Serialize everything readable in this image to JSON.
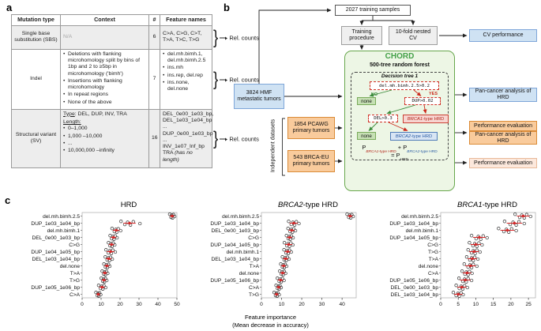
{
  "panel_a": {
    "label": "a",
    "brace": "}",
    "rel_counts_label": "Rel. counts",
    "table": {
      "headers": [
        "Mutation type",
        "Context",
        "#",
        "Feature names"
      ],
      "rows": [
        {
          "mutation_type": "Single base substitution (SBS)",
          "context": "N/A",
          "count": "6",
          "features": "C>A, C>G, C>T, T>A, T>C, T>G"
        },
        {
          "mutation_type": "Indel",
          "count": "7",
          "context_bullets": [
            "Deletions with flanking microhomology split by bins of 1bp and 2 to ≥5bp in microhomology ('bimh')",
            "Insertions with flanking microhomology",
            "In repeat regions",
            "None of the above"
          ],
          "feature_bullets": [
            "del.mh.bimh.1, del.mh.bimh.2.5",
            "ins.mh",
            "ins.rep, del.rep",
            "ins.none, del.none"
          ]
        },
        {
          "mutation_type": "Structural variant (SV)",
          "count": "16",
          "type_label": "Type",
          "type_rest": ": DEL, DUP, INV, TRA",
          "length_label": "Length:",
          "length_bullets": [
            "0–1,000",
            "1,000 –10,000",
            "...",
            "10,000,000 –infinity"
          ],
          "feature_lines": [
            "DEL_0e00_1e03_bp,",
            "DEL_1e03_1e04_bp",
            "...",
            "DUP_0e00_1e03_bp",
            "...",
            "INV_1e07_Inf_bp"
          ],
          "tra_label": "TRA ",
          "tra_note": "(has no length)"
        }
      ]
    }
  },
  "panel_b": {
    "label": "b",
    "training_samples": "2027 training samples",
    "training_procedure": "Training procedure",
    "nested_cv": "10-fold nested CV",
    "cv_performance": "CV performance",
    "hmf": "3824 HMF metastatic tumors",
    "chord_title": "CHORD",
    "chord_subtitle": "500-tree random forest",
    "tree_title": "Decision tree 1",
    "node1": "del.mh.bimh.2.5>0.2",
    "no": "NO",
    "yes": "YES",
    "none1": "none",
    "none2": "none",
    "node2": "DUP>0.02",
    "node3": "DEL>0.3",
    "brca1_italic": "BRCA1",
    "brca1_rest": "-type HRD",
    "brca2_italic": "BRCA2",
    "brca2_rest": "-type HRD",
    "formula": {
      "p1": "P",
      "sub1_italic": "BRCA1",
      "sub1_rest": "-type HRD",
      "plus": " + P",
      "sub2_italic": "BRCA2",
      "sub2_rest": "-type HRD",
      "eq": "= P",
      "sub3": "HRD"
    },
    "independent_label": "Independent datasets",
    "pcawg": "1854 PCAWG primary tumors",
    "brca_eu": "543 BRCA-EU primary tumors",
    "pan_cancer_blue": "Pan-cancer analysis of HRD",
    "perf_eval_1": "Performance evaluation",
    "pan_cancer_orange": "Pan-cancer analysis of HRD",
    "perf_eval_2": "Performance evaluation"
  },
  "panel_c": {
    "label": "c",
    "titles": [
      {
        "italic": "",
        "rest": "HRD"
      },
      {
        "italic": "BRCA2",
        "rest": "-type HRD"
      },
      {
        "italic": "BRCA1",
        "rest": "-type HRD"
      }
    ],
    "xlabel_line1": "Feature importance",
    "xlabel_line2": "(Mean decrease in accuracy)"
  },
  "colors": {
    "mean_red": "#d62728",
    "point_stroke": "#333333",
    "chord_green": "#43a047",
    "blue_box": "#cfe2f3",
    "orange_box": "#f9cb9c",
    "none_green": "#c6e0b4",
    "brca1_red": "#b3271c",
    "brca2_blue": "#2b5da4"
  },
  "chart_data": [
    {
      "type": "scatter",
      "name": "hrd",
      "title": "HRD",
      "xlabel": "Feature importance (Mean decrease in accuracy)",
      "xlim": [
        0,
        50
      ],
      "xticks": [
        0,
        10,
        20,
        30,
        40,
        50
      ],
      "rows": [
        {
          "label": "del.mh.bimh.2.5",
          "mean": 47.5,
          "sd": 1.2,
          "points": [
            46.2,
            46.9,
            47.3,
            47.7,
            48.2,
            48.8
          ]
        },
        {
          "label": "DUP_1e03_1e04_bp",
          "mean": 25,
          "sd": 3.2,
          "points": [
            20.5,
            22.5,
            24,
            25.5,
            27,
            30.5
          ]
        },
        {
          "label": "del.mh.bimh.1",
          "mean": 18,
          "sd": 1.8,
          "points": [
            15.8,
            17,
            17.7,
            18.3,
            19.1,
            20.3
          ]
        },
        {
          "label": "DEL_0e00_1e03_bp",
          "mean": 16.5,
          "sd": 1.5,
          "points": [
            14.8,
            15.6,
            16.2,
            16.8,
            17.5,
            18.4
          ]
        },
        {
          "label": "C>G",
          "mean": 15.5,
          "sd": 1.4,
          "points": [
            13.9,
            14.7,
            15.2,
            15.8,
            16.4,
            17.2
          ]
        },
        {
          "label": "DUP_1e04_1e05_bp",
          "mean": 15,
          "sd": 2,
          "points": [
            12.6,
            13.8,
            14.6,
            15.4,
            16.2,
            17.5
          ]
        },
        {
          "label": "DEL_1e03_1e04_bp",
          "mean": 14,
          "sd": 1.5,
          "points": [
            12.2,
            13.2,
            13.8,
            14.4,
            15,
            15.9
          ]
        },
        {
          "label": "del.none",
          "mean": 13,
          "sd": 1.3,
          "points": [
            11.5,
            12.3,
            12.8,
            13.3,
            13.9,
            14.6
          ]
        },
        {
          "label": "T>A",
          "mean": 12,
          "sd": 1.2,
          "points": [
            10.6,
            11.4,
            11.8,
            12.3,
            12.8,
            13.5
          ]
        },
        {
          "label": "T>G",
          "mean": 11.5,
          "sd": 1.2,
          "points": [
            10.1,
            10.9,
            11.3,
            11.8,
            12.3,
            13
          ]
        },
        {
          "label": "DUP_1e05_1e06_bp",
          "mean": 10.5,
          "sd": 1.5,
          "points": [
            8.7,
            9.7,
            10.3,
            10.9,
            11.5,
            12.4
          ]
        },
        {
          "label": "C>A",
          "mean": 8.5,
          "sd": 1,
          "points": [
            7.3,
            8,
            8.4,
            8.8,
            9.2,
            9.8
          ]
        }
      ]
    },
    {
      "type": "scatter",
      "name": "brca2-type-hrd",
      "title": "BRCA2-type HRD",
      "xlabel": "Feature importance (Mean decrease in accuracy)",
      "xlim": [
        0,
        47
      ],
      "xticks": [
        0,
        10,
        20,
        30,
        40
      ],
      "rows": [
        {
          "label": "del.mh.bimh.2.5",
          "mean": 44,
          "sd": 1.2,
          "points": [
            42.5,
            43.3,
            43.8,
            44.3,
            44.8,
            45.5
          ]
        },
        {
          "label": "DUP_1e03_1e04_bp",
          "mean": 16,
          "sd": 2,
          "points": [
            13.5,
            14.8,
            15.6,
            16.5,
            17.3,
            18.6
          ]
        },
        {
          "label": "DEL_0e00_1e03_bp",
          "mean": 15,
          "sd": 1.5,
          "points": [
            13.2,
            14.2,
            14.8,
            15.4,
            16,
            16.9
          ]
        },
        {
          "label": "C>G",
          "mean": 14,
          "sd": 1.4,
          "points": [
            12.4,
            13.3,
            13.8,
            14.3,
            14.9,
            15.7
          ]
        },
        {
          "label": "DUP_1e04_1e05_bp",
          "mean": 13.5,
          "sd": 1.8,
          "points": [
            11.4,
            12.6,
            13.2,
            13.9,
            14.6,
            15.6
          ]
        },
        {
          "label": "del.mh.bimh.1",
          "mean": 13,
          "sd": 1.5,
          "points": [
            11.2,
            12.2,
            12.8,
            13.3,
            13.9,
            14.8
          ]
        },
        {
          "label": "DEL_1e03_1e04_bp",
          "mean": 12,
          "sd": 1.4,
          "points": [
            10.4,
            11.3,
            11.8,
            12.3,
            12.9,
            13.7
          ]
        },
        {
          "label": "T>A",
          "mean": 11,
          "sd": 1.2,
          "points": [
            9.6,
            10.4,
            10.8,
            11.3,
            11.8,
            12.5
          ]
        },
        {
          "label": "del.none",
          "mean": 10.5,
          "sd": 1.2,
          "points": [
            9.1,
            9.9,
            10.3,
            10.8,
            11.3,
            12
          ]
        },
        {
          "label": "DUP_1e05_1e06_bp",
          "mean": 9.5,
          "sd": 1.4,
          "points": [
            7.9,
            8.8,
            9.3,
            9.8,
            10.4,
            11.2
          ]
        },
        {
          "label": "C>A",
          "mean": 8.5,
          "sd": 1,
          "points": [
            7.3,
            8,
            8.4,
            8.8,
            9.2,
            9.8
          ]
        },
        {
          "label": "T>G",
          "mean": 7.5,
          "sd": 1,
          "points": [
            6.3,
            7,
            7.4,
            7.8,
            8.2,
            8.8
          ]
        }
      ]
    },
    {
      "type": "scatter",
      "name": "brca1-type-hrd",
      "title": "BRCA1-type HRD",
      "xlabel": "Feature importance (Mean decrease in accuracy)",
      "xlim": [
        0,
        27
      ],
      "xticks": [
        0,
        5,
        10,
        15,
        20,
        25
      ],
      "rows": [
        {
          "label": "del.mh.bimh.2.5",
          "mean": 23.5,
          "sd": 1.8,
          "points": [
            21.2,
            22.5,
            23.1,
            23.8,
            24.5,
            25.6
          ]
        },
        {
          "label": "DUP_1e03_1e04_bp",
          "mean": 21,
          "sd": 2.2,
          "points": [
            18.2,
            19.8,
            20.6,
            21.5,
            22.3,
            23.8
          ]
        },
        {
          "label": "del.mh.bimh.1",
          "mean": 19,
          "sd": 2,
          "points": [
            16.5,
            18,
            18.7,
            19.4,
            20.2,
            21.5
          ]
        },
        {
          "label": "DUP_1e04_1e05_bp",
          "mean": 11,
          "sd": 1.8,
          "points": [
            8.8,
            10.1,
            10.7,
            11.4,
            12.1,
            13.2
          ]
        },
        {
          "label": "C>G",
          "mean": 10,
          "sd": 1.5,
          "points": [
            8.2,
            9.2,
            9.7,
            10.3,
            10.9,
            11.8
          ]
        },
        {
          "label": "T>G",
          "mean": 9.5,
          "sd": 1.4,
          "points": [
            7.8,
            8.8,
            9.3,
            9.8,
            10.3,
            11.2
          ]
        },
        {
          "label": "T>A",
          "mean": 9,
          "sd": 1.3,
          "points": [
            7.4,
            8.3,
            8.8,
            9.3,
            9.7,
            10.6
          ]
        },
        {
          "label": "del.none",
          "mean": 8.5,
          "sd": 1.5,
          "points": [
            6.7,
            7.8,
            8.3,
            8.8,
            9.3,
            10.3
          ]
        },
        {
          "label": "C>A",
          "mean": 7.5,
          "sd": 1.2,
          "points": [
            6.1,
            6.9,
            7.3,
            7.8,
            8.2,
            8.9
          ]
        },
        {
          "label": "DUP_1e05_1e06_bp",
          "mean": 7,
          "sd": 1.5,
          "points": [
            5.2,
            6.3,
            6.8,
            7.3,
            7.8,
            8.8
          ]
        },
        {
          "label": "DEL_0e00_1e03_bp",
          "mean": 6,
          "sd": 1.3,
          "points": [
            4.4,
            5.3,
            5.8,
            6.3,
            6.8,
            7.6
          ]
        },
        {
          "label": "DEL_1e03_1e04_bp",
          "mean": 5,
          "sd": 1.2,
          "points": [
            3.6,
            4.4,
            4.9,
            5.3,
            5.8,
            6.4
          ]
        }
      ]
    }
  ]
}
